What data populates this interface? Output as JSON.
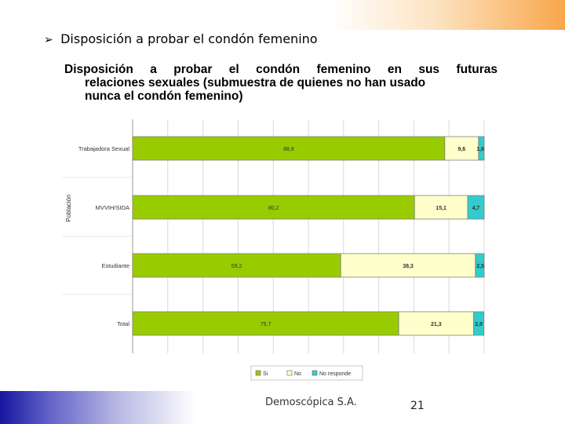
{
  "slide": {
    "heading": "Disposición a probar el condón femenino",
    "company": "Demoscópica S.A.",
    "page_number": "21"
  },
  "colors": {
    "si": "#99cc00",
    "no": "#ffffcc",
    "no_responde": "#33cccc",
    "top_accent": "#f8a64a",
    "bottom_accent": "#1616a0"
  },
  "chart_data": {
    "type": "bar",
    "orientation": "horizontal",
    "stacked": true,
    "title_lines": [
      "Disposición a probar el condón femenino en sus futuras",
      "relaciones sexuales (submuestra de quienes no han usado",
      "nunca el condón femenino)"
    ],
    "ylabel": "Población",
    "xlim": [
      0,
      100
    ],
    "grid": true,
    "legend_position": "bottom",
    "categories": [
      "Trabajadora Sexual",
      "MVVIH/SIDA",
      "Estudiante",
      "Total"
    ],
    "series": [
      {
        "name": "Si",
        "color": "#99cc00",
        "values": [
          88.8,
          80.2,
          59.2,
          75.7
        ],
        "labels": [
          "88,8",
          "80,2",
          "59,2",
          "75,7"
        ]
      },
      {
        "name": "No",
        "color": "#ffffcc",
        "values": [
          9.6,
          15.1,
          38.3,
          21.3
        ],
        "labels": [
          "9,6",
          "15,1",
          "38,3",
          "21,3"
        ]
      },
      {
        "name": "No responde",
        "color": "#33cccc",
        "values": [
          1.6,
          4.7,
          2.5,
          2.9
        ],
        "labels": [
          "1,6",
          "4,7",
          "2,5",
          "2,9"
        ]
      }
    ]
  }
}
